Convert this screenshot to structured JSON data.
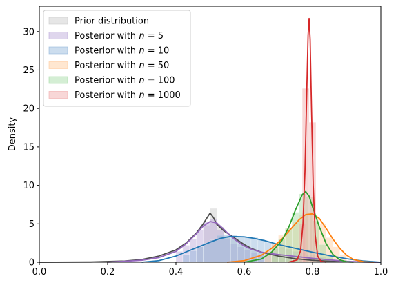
{
  "chart_data": {
    "type": "area",
    "title": "",
    "xlabel": "",
    "ylabel": "Density",
    "xlim": [
      0.0,
      1.0
    ],
    "ylim": [
      0,
      33.3
    ],
    "grid": false,
    "legend_placement": "top-left",
    "x_ticks": [
      "0.0",
      "0.2",
      "0.4",
      "0.6",
      "0.8",
      "1.0"
    ],
    "y_ticks": [
      "0",
      "5",
      "10",
      "15",
      "20",
      "25",
      "30"
    ],
    "series": [
      {
        "name": "Prior distribution",
        "legend_text": "Prior distribution",
        "hist_color": "#c8c8c8",
        "line_color": "#4d4d4d",
        "bins": [
          [
            0.46,
            0.48,
            2.1
          ],
          [
            0.48,
            0.5,
            4.8
          ],
          [
            0.5,
            0.52,
            7.0
          ],
          [
            0.52,
            0.54,
            4.6
          ],
          [
            0.54,
            0.56,
            3.4
          ],
          [
            0.56,
            0.58,
            3.0
          ],
          [
            0.58,
            0.6,
            2.4
          ],
          [
            0.6,
            0.62,
            1.9
          ],
          [
            0.62,
            0.64,
            1.5
          ],
          [
            0.64,
            0.66,
            1.2
          ],
          [
            0.66,
            0.68,
            1.0
          ],
          [
            0.68,
            0.7,
            0.8
          ],
          [
            0.7,
            0.72,
            0.6
          ],
          [
            0.72,
            0.74,
            0.5
          ],
          [
            0.74,
            0.76,
            0.4
          ],
          [
            0.76,
            0.78,
            0.3
          ],
          [
            0.78,
            0.8,
            0.25
          ],
          [
            0.8,
            0.82,
            0.2
          ]
        ],
        "curve": [
          [
            0.0,
            0.0
          ],
          [
            0.15,
            0.03
          ],
          [
            0.25,
            0.15
          ],
          [
            0.3,
            0.35
          ],
          [
            0.35,
            0.8
          ],
          [
            0.4,
            1.6
          ],
          [
            0.43,
            2.5
          ],
          [
            0.46,
            3.8
          ],
          [
            0.48,
            5.0
          ],
          [
            0.5,
            6.4
          ],
          [
            0.51,
            5.8
          ],
          [
            0.52,
            4.9
          ],
          [
            0.54,
            4.1
          ],
          [
            0.56,
            3.5
          ],
          [
            0.58,
            2.9
          ],
          [
            0.6,
            2.3
          ],
          [
            0.62,
            1.8
          ],
          [
            0.65,
            1.3
          ],
          [
            0.7,
            0.8
          ],
          [
            0.75,
            0.45
          ],
          [
            0.8,
            0.25
          ],
          [
            0.85,
            0.12
          ],
          [
            0.9,
            0.05
          ],
          [
            1.0,
            0.0
          ]
        ]
      },
      {
        "name": "Posterior with n=5",
        "legend_prefix": "Posterior with ",
        "legend_var": "n",
        "legend_suffix": " = 5",
        "hist_color": "#b9a4d8",
        "line_color": "#9467bd",
        "bins": [
          [
            0.4,
            0.42,
            1.4
          ],
          [
            0.42,
            0.44,
            2.2
          ],
          [
            0.44,
            0.46,
            3.0
          ],
          [
            0.46,
            0.48,
            4.2
          ],
          [
            0.48,
            0.5,
            5.3
          ],
          [
            0.5,
            0.52,
            5.6
          ],
          [
            0.52,
            0.54,
            4.2
          ],
          [
            0.54,
            0.56,
            3.0
          ],
          [
            0.56,
            0.58,
            2.4
          ],
          [
            0.58,
            0.6,
            2.0
          ],
          [
            0.6,
            0.62,
            1.6
          ],
          [
            0.62,
            0.64,
            1.3
          ],
          [
            0.64,
            0.66,
            1.0
          ]
        ],
        "curve": [
          [
            0.2,
            0.0
          ],
          [
            0.3,
            0.25
          ],
          [
            0.35,
            0.6
          ],
          [
            0.4,
            1.4
          ],
          [
            0.43,
            2.4
          ],
          [
            0.46,
            3.7
          ],
          [
            0.48,
            4.7
          ],
          [
            0.5,
            5.3
          ],
          [
            0.52,
            5.1
          ],
          [
            0.54,
            4.3
          ],
          [
            0.56,
            3.4
          ],
          [
            0.58,
            2.7
          ],
          [
            0.6,
            2.1
          ],
          [
            0.62,
            1.7
          ],
          [
            0.65,
            1.3
          ],
          [
            0.7,
            1.0
          ],
          [
            0.75,
            0.75
          ],
          [
            0.8,
            0.5
          ],
          [
            0.85,
            0.3
          ],
          [
            0.9,
            0.12
          ],
          [
            0.95,
            0.03
          ],
          [
            1.0,
            0.0
          ]
        ]
      },
      {
        "name": "Posterior with n=10",
        "legend_prefix": "Posterior with ",
        "legend_var": "n",
        "legend_suffix": " = 10",
        "hist_color": "#8fb4d9",
        "line_color": "#1f77b4",
        "bins": [
          [
            0.42,
            0.44,
            1.0
          ],
          [
            0.44,
            0.46,
            1.5
          ],
          [
            0.46,
            0.48,
            2.0
          ],
          [
            0.48,
            0.5,
            2.5
          ],
          [
            0.5,
            0.52,
            2.9
          ],
          [
            0.52,
            0.54,
            3.5
          ],
          [
            0.54,
            0.56,
            3.6
          ],
          [
            0.56,
            0.58,
            3.5
          ],
          [
            0.58,
            0.6,
            3.4
          ],
          [
            0.6,
            0.62,
            3.3
          ],
          [
            0.62,
            0.64,
            3.2
          ],
          [
            0.64,
            0.66,
            3.0
          ],
          [
            0.66,
            0.68,
            2.6
          ],
          [
            0.68,
            0.7,
            2.3
          ],
          [
            0.7,
            0.72,
            2.0
          ],
          [
            0.72,
            0.74,
            1.7
          ],
          [
            0.74,
            0.76,
            1.4
          ],
          [
            0.76,
            0.78,
            1.2
          ],
          [
            0.78,
            0.8,
            1.0
          ],
          [
            0.8,
            0.82,
            0.9
          ],
          [
            0.82,
            0.84,
            0.7
          ],
          [
            0.84,
            0.86,
            0.5
          ]
        ],
        "curve": [
          [
            0.3,
            0.0
          ],
          [
            0.35,
            0.2
          ],
          [
            0.4,
            0.8
          ],
          [
            0.45,
            1.7
          ],
          [
            0.5,
            2.6
          ],
          [
            0.53,
            3.1
          ],
          [
            0.56,
            3.35
          ],
          [
            0.6,
            3.3
          ],
          [
            0.63,
            3.1
          ],
          [
            0.66,
            2.8
          ],
          [
            0.7,
            2.3
          ],
          [
            0.75,
            1.8
          ],
          [
            0.8,
            1.3
          ],
          [
            0.85,
            0.85
          ],
          [
            0.9,
            0.45
          ],
          [
            0.95,
            0.15
          ],
          [
            1.0,
            0.0
          ]
        ]
      },
      {
        "name": "Posterior with n=50",
        "legend_prefix": "Posterior with ",
        "legend_var": "n",
        "legend_suffix": " = 50",
        "hist_color": "#ffc999",
        "line_color": "#ff7f0e",
        "bins": [
          [
            0.66,
            0.68,
            1.5
          ],
          [
            0.68,
            0.7,
            2.5
          ],
          [
            0.7,
            0.72,
            3.5
          ],
          [
            0.72,
            0.74,
            4.4
          ],
          [
            0.74,
            0.76,
            5.2
          ],
          [
            0.76,
            0.78,
            6.2
          ],
          [
            0.78,
            0.8,
            6.5
          ],
          [
            0.8,
            0.82,
            5.8
          ],
          [
            0.82,
            0.84,
            5.0
          ],
          [
            0.84,
            0.86,
            3.2
          ],
          [
            0.86,
            0.88,
            2.0
          ],
          [
            0.88,
            0.9,
            1.0
          ]
        ],
        "curve": [
          [
            0.55,
            0.0
          ],
          [
            0.6,
            0.2
          ],
          [
            0.65,
            0.9
          ],
          [
            0.68,
            1.8
          ],
          [
            0.71,
            3.0
          ],
          [
            0.74,
            4.5
          ],
          [
            0.76,
            5.5
          ],
          [
            0.78,
            6.2
          ],
          [
            0.8,
            6.3
          ],
          [
            0.82,
            5.7
          ],
          [
            0.84,
            4.4
          ],
          [
            0.86,
            3.0
          ],
          [
            0.88,
            1.8
          ],
          [
            0.9,
            0.9
          ],
          [
            0.92,
            0.35
          ],
          [
            0.95,
            0.05
          ],
          [
            0.98,
            0.0
          ]
        ]
      },
      {
        "name": "Posterior with n=100",
        "legend_prefix": "Posterior with ",
        "legend_var": "n",
        "legend_suffix": " = 100",
        "hist_color": "#9fd99f",
        "line_color": "#2ca02c",
        "bins": [
          [
            0.68,
            0.7,
            1.8
          ],
          [
            0.7,
            0.72,
            3.0
          ],
          [
            0.72,
            0.74,
            4.4
          ],
          [
            0.74,
            0.76,
            6.5
          ],
          [
            0.76,
            0.78,
            8.9
          ],
          [
            0.78,
            0.8,
            8.5
          ],
          [
            0.8,
            0.82,
            5.4
          ],
          [
            0.82,
            0.84,
            2.3
          ],
          [
            0.84,
            0.86,
            0.9
          ]
        ],
        "curve": [
          [
            0.6,
            0.0
          ],
          [
            0.65,
            0.4
          ],
          [
            0.68,
            1.3
          ],
          [
            0.71,
            2.8
          ],
          [
            0.73,
            4.5
          ],
          [
            0.75,
            6.8
          ],
          [
            0.77,
            8.8
          ],
          [
            0.78,
            9.2
          ],
          [
            0.79,
            8.6
          ],
          [
            0.8,
            7.2
          ],
          [
            0.82,
            4.6
          ],
          [
            0.84,
            2.4
          ],
          [
            0.86,
            1.0
          ],
          [
            0.88,
            0.3
          ],
          [
            0.9,
            0.05
          ],
          [
            0.92,
            0.0
          ]
        ]
      },
      {
        "name": "Posterior with n=1000",
        "legend_prefix": "Posterior with ",
        "legend_var": "n",
        "legend_suffix": " = 1000",
        "hist_color": "#f0a7a7",
        "line_color": "#d62728",
        "bins": [
          [
            0.76,
            0.78,
            5.0
          ],
          [
            0.77,
            0.79,
            22.6
          ],
          [
            0.79,
            0.81,
            18.2
          ],
          [
            0.81,
            0.82,
            1.5
          ]
        ],
        "curve": [
          [
            0.73,
            0.0
          ],
          [
            0.755,
            0.3
          ],
          [
            0.765,
            1.5
          ],
          [
            0.772,
            5.0
          ],
          [
            0.778,
            12.0
          ],
          [
            0.783,
            22.0
          ],
          [
            0.787,
            29.5
          ],
          [
            0.79,
            31.7
          ],
          [
            0.793,
            29.0
          ],
          [
            0.797,
            20.0
          ],
          [
            0.802,
            10.0
          ],
          [
            0.808,
            3.5
          ],
          [
            0.815,
            0.8
          ],
          [
            0.825,
            0.1
          ],
          [
            0.84,
            0.0
          ]
        ]
      }
    ]
  }
}
